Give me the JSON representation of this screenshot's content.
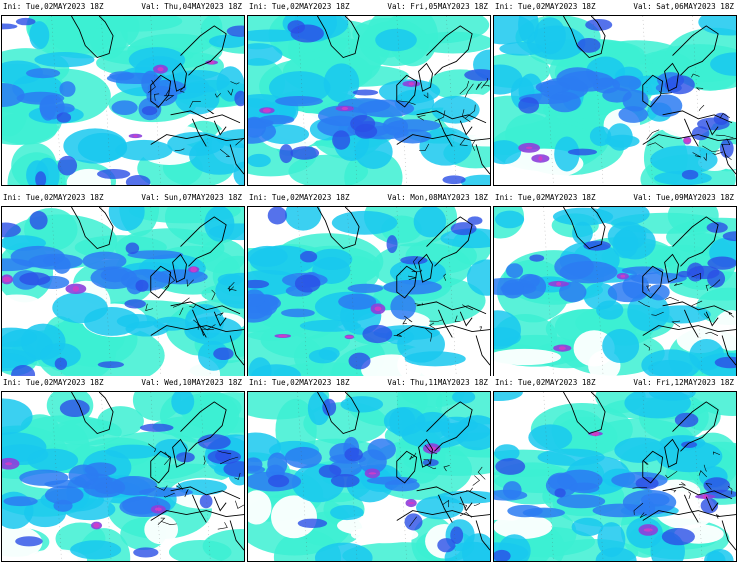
{
  "panels": [
    {
      "ini": "Ini:  Tue,02MAY2023  18Z",
      "val": "Val:  Thu,04MAY2023  18Z"
    },
    {
      "ini": "Ini:  Tue,02MAY2023  18Z",
      "val": "Val:  Fri,05MAY2023  18Z"
    },
    {
      "ini": "Ini:  Tue,02MAY2023  18Z",
      "val": "Val:  Sat,06MAY2023  18Z"
    },
    {
      "ini": "Ini:  Tue,02MAY2023  18Z",
      "val": "Val:  Sun,07MAY2023  18Z"
    },
    {
      "ini": "Ini:  Tue,02MAY2023  18Z",
      "val": "Val:  Mon,08MAY2023  18Z"
    },
    {
      "ini": "Ini:  Tue,02MAY2023  18Z",
      "val": "Val:  Tue,09MAY2023  18Z"
    },
    {
      "ini": "Ini:  Tue,02MAY2023  18Z",
      "val": "Val:  Wed,10MAY2023  18Z"
    },
    {
      "ini": "Ini:  Tue,02MAY2023  18Z",
      "val": "Val:  Thu,11MAY2023  18Z"
    },
    {
      "ini": "Ini:  Tue,02MAY2023  18Z",
      "val": "Val:  Fri,12MAY2023  18Z"
    }
  ],
  "colors": {
    "light": "#3cf0d2",
    "mid": "#19c8ef",
    "deep": "#2c7bf2",
    "dark": "#2b4fe6",
    "purple": "#8c3fdc",
    "magenta": "#d23cc8",
    "coast": "#000000"
  }
}
